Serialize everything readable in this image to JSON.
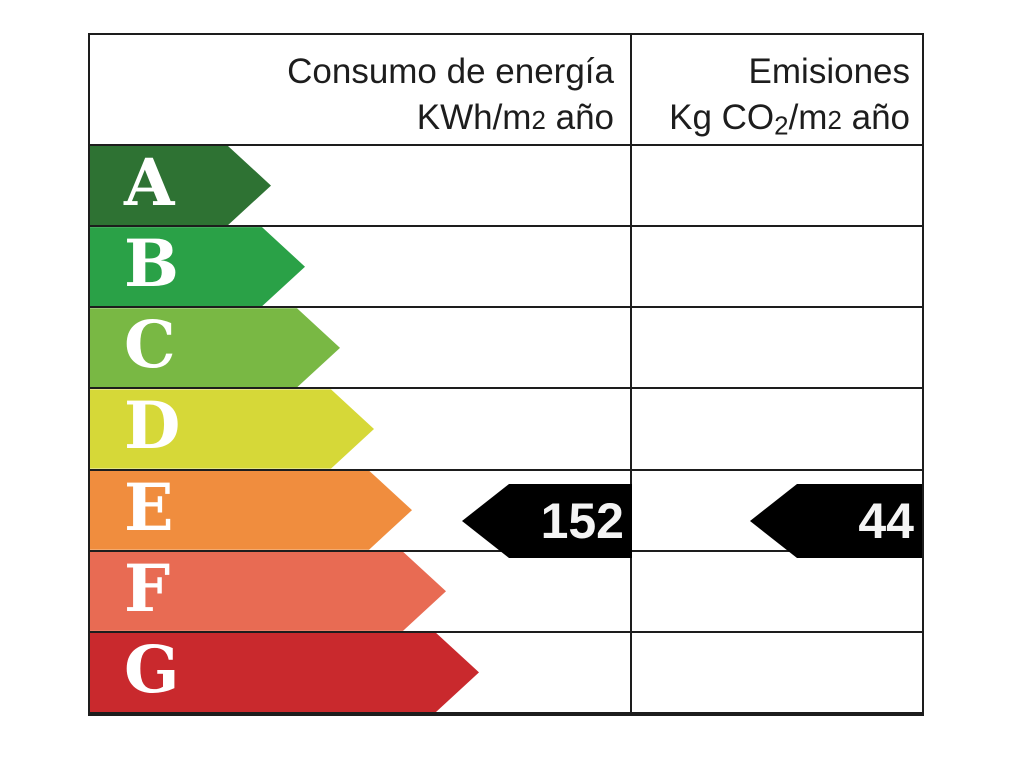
{
  "chart_data": {
    "type": "bar",
    "subtype": "energy-efficiency-label",
    "title": "",
    "legend": "none",
    "grid": "table-borders",
    "categories": [
      "A",
      "B",
      "C",
      "D",
      "E",
      "F",
      "G"
    ],
    "ratings": [
      {
        "letter": "A",
        "color": "#2e7233"
      },
      {
        "letter": "B",
        "color": "#2aa147"
      },
      {
        "letter": "C",
        "color": "#79b844"
      },
      {
        "letter": "D",
        "color": "#d6d838"
      },
      {
        "letter": "E",
        "color": "#f08d3e"
      },
      {
        "letter": "F",
        "color": "#e86b53"
      },
      {
        "letter": "G",
        "color": "#c9292d"
      }
    ],
    "selected_rating": "E",
    "columns": [
      {
        "label": "Consumo de energía",
        "unit": "KWh/m2 año",
        "unit_parts": [
          "KWh/m",
          "2",
          " año"
        ],
        "value": "152"
      },
      {
        "label": "Emisiones",
        "unit": "Kg CO2/m2 año",
        "unit_parts": [
          "Kg CO",
          "2",
          "/m",
          "2",
          " año"
        ],
        "value": "44"
      }
    ],
    "values": {
      "consumption_kwh_m2_year": 152,
      "emissions_kgco2_m2_year": 44
    },
    "value_arrow_color": "#000000",
    "text_color": "#1d1d1d",
    "border_color": "#1d1d1d"
  }
}
